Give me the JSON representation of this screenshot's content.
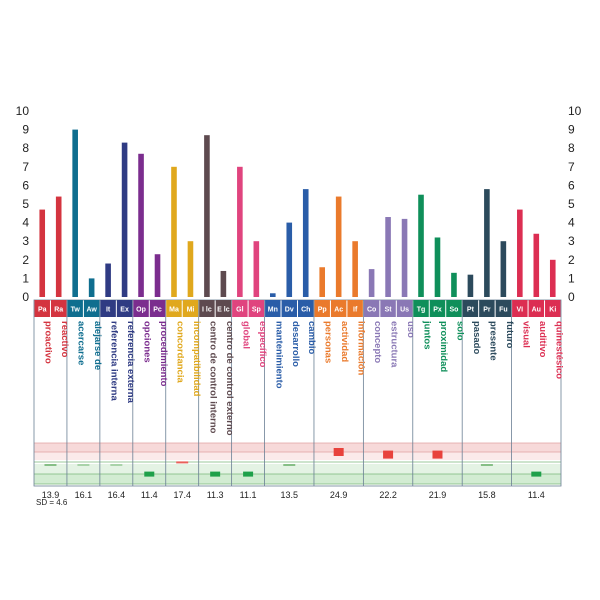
{
  "chart_data": {
    "type": "bar",
    "ylim": [
      0,
      10
    ],
    "yticks": [
      0,
      1,
      2,
      3,
      4,
      5,
      6,
      7,
      8,
      9,
      10
    ],
    "grid": false,
    "categories": [
      {
        "abbr": "Pa",
        "word": "proactivo",
        "value": 4.7,
        "color": "#d4343f"
      },
      {
        "abbr": "Ra",
        "word": "reactivo",
        "value": 5.4,
        "color": "#d4343f"
      },
      {
        "abbr": "Tw",
        "word": "acercarse",
        "value": 9.0,
        "color": "#0f6e8f"
      },
      {
        "abbr": "Aw",
        "word": "alejarse de",
        "value": 1.0,
        "color": "#0f6e8f"
      },
      {
        "abbr": "It",
        "word": "referencia interna",
        "value": 1.8,
        "color": "#2f3b83"
      },
      {
        "abbr": "Ex",
        "word": "referencia externa",
        "value": 8.3,
        "color": "#2f3b83"
      },
      {
        "abbr": "Op",
        "word": "opciones",
        "value": 7.7,
        "color": "#7b2d8e"
      },
      {
        "abbr": "Pc",
        "word": "procedimiento",
        "value": 2.3,
        "color": "#7b2d8e"
      },
      {
        "abbr": "Ma",
        "word": "concordancia",
        "value": 7.0,
        "color": "#e0a81d"
      },
      {
        "abbr": "Mi",
        "word": "incompatibilidad",
        "value": 3.0,
        "color": "#e0a81d"
      },
      {
        "abbr": "I lc",
        "word": "centro de control interno",
        "value": 8.7,
        "color": "#5e4a4f"
      },
      {
        "abbr": "E lc",
        "word": "centro de control externo",
        "value": 1.4,
        "color": "#5e4a4f"
      },
      {
        "abbr": "Gl",
        "word": "global",
        "value": 7.0,
        "color": "#e0447e"
      },
      {
        "abbr": "Sp",
        "word": "específico",
        "value": 3.0,
        "color": "#e0447e"
      },
      {
        "abbr": "Mn",
        "word": "mantenimiento",
        "value": 0.2,
        "color": "#2a5da8"
      },
      {
        "abbr": "Dv",
        "word": "desarrollo",
        "value": 4.0,
        "color": "#2a5da8"
      },
      {
        "abbr": "Ch",
        "word": "cambio",
        "value": 5.8,
        "color": "#2a5da8"
      },
      {
        "abbr": "Pp",
        "word": "personas",
        "value": 1.6,
        "color": "#ea7a2c"
      },
      {
        "abbr": "Ac",
        "word": "actividad",
        "value": 5.4,
        "color": "#ea7a2c"
      },
      {
        "abbr": "If",
        "word": "información",
        "value": 3.0,
        "color": "#ea7a2c"
      },
      {
        "abbr": "Co",
        "word": "concepto",
        "value": 1.5,
        "color": "#8a78b5"
      },
      {
        "abbr": "St",
        "word": "estructura",
        "value": 4.3,
        "color": "#8a78b5"
      },
      {
        "abbr": "Us",
        "word": "uso",
        "value": 4.2,
        "color": "#8a78b5"
      },
      {
        "abbr": "Tg",
        "word": "juntos",
        "value": 5.5,
        "color": "#0f8f5a"
      },
      {
        "abbr": "Px",
        "word": "proximidad",
        "value": 3.2,
        "color": "#0f8f5a"
      },
      {
        "abbr": "So",
        "word": "solo",
        "value": 1.3,
        "color": "#0f8f5a"
      },
      {
        "abbr": "Pt",
        "word": "pasado",
        "value": 1.2,
        "color": "#2c4a5c"
      },
      {
        "abbr": "Pr",
        "word": "presente",
        "value": 5.8,
        "color": "#2c4a5c"
      },
      {
        "abbr": "Fu",
        "word": "futuro",
        "value": 3.0,
        "color": "#2c4a5c"
      },
      {
        "abbr": "VI",
        "word": "visual",
        "value": 4.7,
        "color": "#dc2e52"
      },
      {
        "abbr": "Au",
        "word": "auditivo",
        "value": 3.4,
        "color": "#dc2e52"
      },
      {
        "abbr": "Ki",
        "word": "quinestésico",
        "value": 2.0,
        "color": "#dc2e52"
      }
    ],
    "groups": [
      {
        "size": 2,
        "score": "13.9",
        "marker_level": 0.5,
        "marker_color": "#86bf86"
      },
      {
        "size": 2,
        "score": "16.1",
        "marker_level": 0.5,
        "marker_color": "#a9d3a9"
      },
      {
        "size": 2,
        "score": "16.4",
        "marker_level": 0.5,
        "marker_color": "#a9d3a9"
      },
      {
        "size": 2,
        "score": "11.4",
        "marker_level": 0.15,
        "marker_color": "#1fa04a"
      },
      {
        "size": 2,
        "score": "17.4",
        "marker_level": 0.6,
        "marker_color": "#e8605a"
      },
      {
        "size": 2,
        "score": "11.3",
        "marker_level": 0.15,
        "marker_color": "#1fa04a"
      },
      {
        "size": 2,
        "score": "11.1",
        "marker_level": 0.15,
        "marker_color": "#1fa04a"
      },
      {
        "size": 3,
        "score": "13.5",
        "marker_level": 0.5,
        "marker_color": "#86bf86"
      },
      {
        "size": 3,
        "score": "24.9",
        "marker_level": 1.0,
        "marker_color": "#e8423c"
      },
      {
        "size": 3,
        "score": "22.2",
        "marker_level": 0.9,
        "marker_color": "#e8423c"
      },
      {
        "size": 3,
        "score": "21.9",
        "marker_level": 0.9,
        "marker_color": "#e8423c"
      },
      {
        "size": 3,
        "score": "15.8",
        "marker_level": 0.5,
        "marker_color": "#86bf86"
      },
      {
        "size": 3,
        "score": "11.4",
        "marker_level": 0.15,
        "marker_color": "#1fa04a"
      }
    ],
    "sd_text": "SD = 4.6"
  }
}
